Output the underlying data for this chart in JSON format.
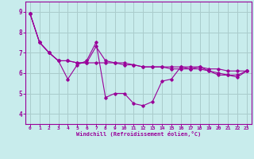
{
  "xlabel": "Windchill (Refroidissement éolien,°C)",
  "background_color": "#c8ecec",
  "line_color": "#990099",
  "grid_color": "#aacccc",
  "xlim": [
    -0.5,
    23.5
  ],
  "ylim": [
    3.5,
    9.5
  ],
  "yticks": [
    4,
    5,
    6,
    7,
    8,
    9
  ],
  "xticks": [
    0,
    1,
    2,
    3,
    4,
    5,
    6,
    7,
    8,
    9,
    10,
    11,
    12,
    13,
    14,
    15,
    16,
    17,
    18,
    19,
    20,
    21,
    22,
    23
  ],
  "series": [
    [
      8.9,
      7.5,
      7.0,
      6.6,
      5.7,
      6.4,
      6.6,
      7.5,
      4.8,
      5.0,
      5.0,
      4.5,
      4.4,
      4.6,
      5.6,
      5.7,
      6.3,
      6.2,
      6.3,
      6.1,
      5.9,
      5.9,
      5.8,
      6.1
    ],
    [
      8.9,
      7.5,
      7.0,
      6.6,
      6.6,
      6.5,
      6.5,
      7.3,
      6.6,
      6.5,
      6.5,
      6.4,
      6.3,
      6.3,
      6.3,
      6.3,
      6.3,
      6.3,
      6.3,
      6.2,
      6.2,
      6.1,
      6.1,
      6.1
    ],
    [
      8.9,
      7.5,
      7.0,
      6.6,
      6.6,
      6.5,
      6.5,
      6.5,
      6.5,
      6.5,
      6.4,
      6.4,
      6.3,
      6.3,
      6.3,
      6.2,
      6.2,
      6.2,
      6.2,
      6.1,
      6.0,
      5.9,
      5.9,
      6.1
    ]
  ]
}
